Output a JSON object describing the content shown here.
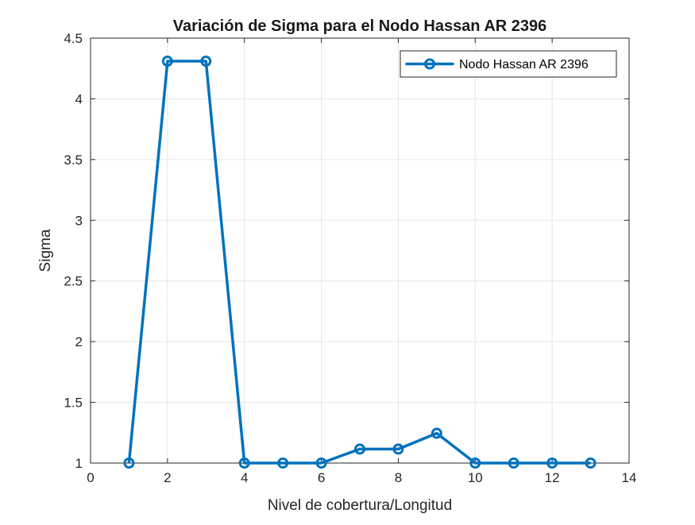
{
  "chart_data": {
    "type": "line",
    "title": "Variación de Sigma para el Nodo Hassan AR 2396",
    "xlabel": "Nivel de cobertura/Longitud",
    "ylabel": "Sigma",
    "xlim": [
      0,
      14
    ],
    "ylim": [
      1,
      4.5
    ],
    "xticks": [
      0,
      2,
      4,
      6,
      8,
      10,
      12,
      14
    ],
    "yticks": [
      1,
      1.5,
      2,
      2.5,
      3,
      3.5,
      4,
      4.5
    ],
    "xtick_labels": [
      "0",
      "2",
      "4",
      "6",
      "8",
      "10",
      "12",
      "14"
    ],
    "ytick_labels": [
      "1",
      "1.5",
      "2",
      "2.5",
      "3",
      "3.5",
      "4",
      "4.5"
    ],
    "grid": true,
    "legend_position": "top-right",
    "series": [
      {
        "name": "Nodo Hassan AR 2396",
        "color": "#0072BD",
        "marker": "circle",
        "x": [
          1,
          2,
          3,
          4,
          5,
          6,
          7,
          8,
          9,
          10,
          11,
          12,
          13
        ],
        "y": [
          1.0,
          4.31,
          4.31,
          1.0,
          1.0,
          1.0,
          1.115,
          1.115,
          1.245,
          1.0,
          1.0,
          1.0,
          1.0
        ]
      }
    ]
  }
}
